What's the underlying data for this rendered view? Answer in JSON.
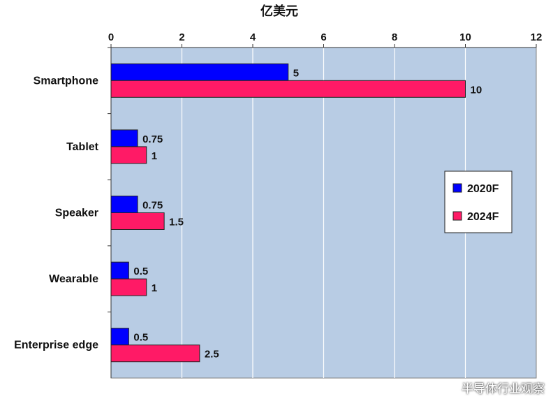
{
  "chart_data": {
    "type": "bar",
    "orientation": "horizontal",
    "title": "亿美元",
    "categories": [
      "Smartphone",
      "Tablet",
      "Speaker",
      "Wearable",
      "Enterprise edge"
    ],
    "series": [
      {
        "name": "2020F",
        "values": [
          5,
          0.75,
          0.75,
          0.5,
          0.5
        ],
        "color": "#0000ff"
      },
      {
        "name": "2024F",
        "values": [
          10,
          1,
          1.5,
          1,
          2.5
        ],
        "color": "#ff1a66"
      }
    ],
    "data_labels": [
      [
        "5",
        "0.75",
        "0.75",
        "0.5",
        "0.5"
      ],
      [
        "10",
        "1",
        "1.5",
        "1",
        "2.5"
      ]
    ],
    "xlim": [
      0,
      12
    ],
    "xticks": [
      "0",
      "2",
      "4",
      "6",
      "8",
      "10",
      "12"
    ],
    "axis_position": "top",
    "grid": true,
    "plot_background": "#b8cce4",
    "legend_position": "right"
  },
  "watermark": {
    "text": "半导体行业观察",
    "icon": "wechat-icon"
  }
}
